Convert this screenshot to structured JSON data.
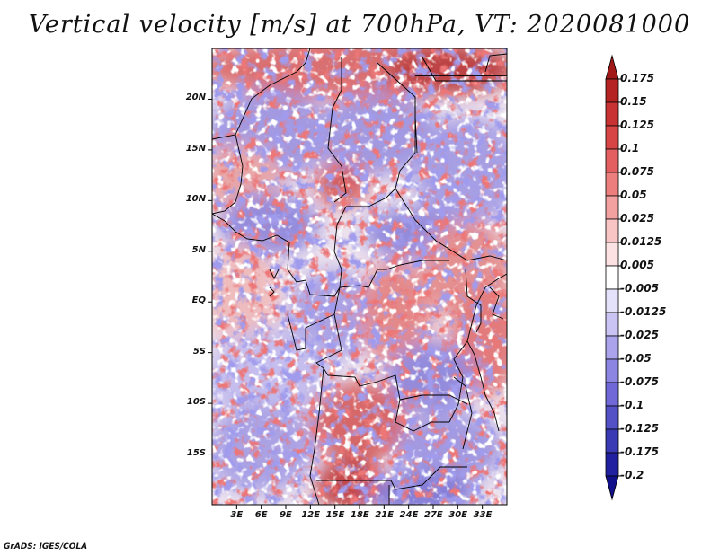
{
  "title": "Vertical velocity [m/s] at 700hPa, VT: 2020081000",
  "credit": "GrADS: IGES/COLA",
  "map": {
    "lat_range": [
      -20,
      25
    ],
    "lon_range": [
      0,
      36
    ],
    "lat_ticks": [
      {
        "value": 20,
        "label": "20N"
      },
      {
        "value": 15,
        "label": "15N"
      },
      {
        "value": 10,
        "label": "10N"
      },
      {
        "value": 5,
        "label": "5N"
      },
      {
        "value": 0,
        "label": "EQ"
      },
      {
        "value": -5,
        "label": "5S"
      },
      {
        "value": -10,
        "label": "10S"
      },
      {
        "value": -15,
        "label": "15S"
      }
    ],
    "lon_ticks": [
      {
        "value": 3,
        "label": "3E"
      },
      {
        "value": 6,
        "label": "6E"
      },
      {
        "value": 9,
        "label": "9E"
      },
      {
        "value": 12,
        "label": "12E"
      },
      {
        "value": 15,
        "label": "15E"
      },
      {
        "value": 18,
        "label": "18E"
      },
      {
        "value": 21,
        "label": "21E"
      },
      {
        "value": 24,
        "label": "24E"
      },
      {
        "value": 27,
        "label": "27E"
      },
      {
        "value": 30,
        "label": "30E"
      },
      {
        "value": 33,
        "label": "33E"
      }
    ]
  },
  "colorbar": {
    "levels": [
      "0.175",
      "0.15",
      "0.125",
      "0.1",
      "0.075",
      "0.05",
      "0.025",
      "0.0125",
      "0.005",
      "-0.005",
      "-0.0125",
      "-0.025",
      "-0.05",
      "-0.075",
      "-0.1",
      "-0.125",
      "-0.175",
      "-0.2"
    ],
    "colors": [
      "#a01818",
      "#b52323",
      "#c83232",
      "#d84545",
      "#e46060",
      "#ec7e7e",
      "#f3a0a0",
      "#f8c4c4",
      "#fce2e2",
      "#ffffff",
      "#e4e2fa",
      "#c9c4f4",
      "#aba4ec",
      "#8d85e2",
      "#6f68d6",
      "#5451c6",
      "#3a3ab4",
      "#2020a0",
      "#120f8a"
    ]
  }
}
